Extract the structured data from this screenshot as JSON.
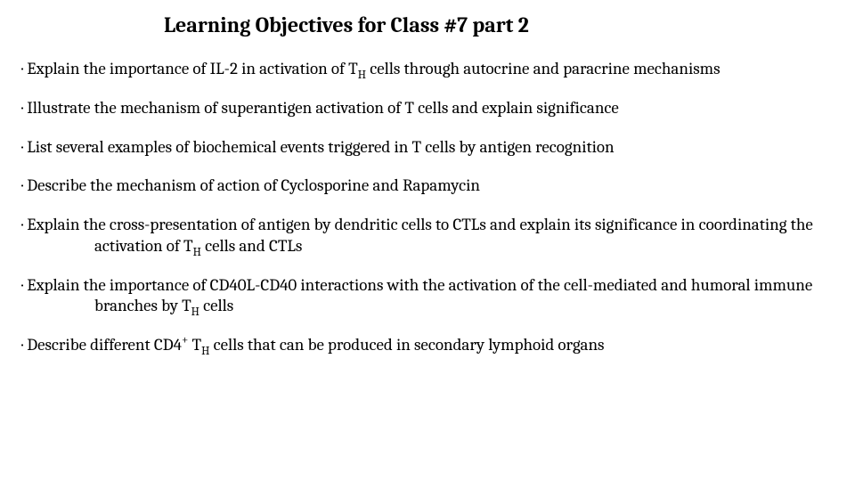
{
  "title": "Learning Objectives for Class #7 part 2",
  "bullet_char": "·",
  "objectives": [
    {
      "pre": "Explain the importance of IL-2 in activation of T",
      "sub": "H",
      "post": " cells through autocrine and paracrine mechanisms"
    },
    {
      "pre": "Illustrate the mechanism of superantigen activation of T cells and explain significance",
      "sub": "",
      "post": ""
    },
    {
      "pre": "List several examples of biochemical events triggered in T cells by antigen recognition",
      "sub": "",
      "post": ""
    },
    {
      "pre": "Describe the mechanism of action of Cyclosporine and Rapamycin",
      "sub": "",
      "post": ""
    },
    {
      "pre": "Explain the cross-presentation of antigen by dendritic cells to CTLs and explain its significance in coordinating the activation of T",
      "sub": "H",
      "post": " cells and CTLs"
    },
    {
      "pre": "Explain the importance of CD40L-CD40 interactions with the activation of the cell-mediated and humoral immune branches by T",
      "sub": "H",
      "post": " cells"
    },
    {
      "pre": "Describe different CD4",
      "sup": "+",
      "mid": " T",
      "sub": "H",
      "post": " cells that can be produced in secondary lymphoid organs"
    }
  ],
  "colors": {
    "text": "#000000",
    "background": "#ffffff"
  },
  "fontsize": {
    "title": 24,
    "body": 19
  }
}
